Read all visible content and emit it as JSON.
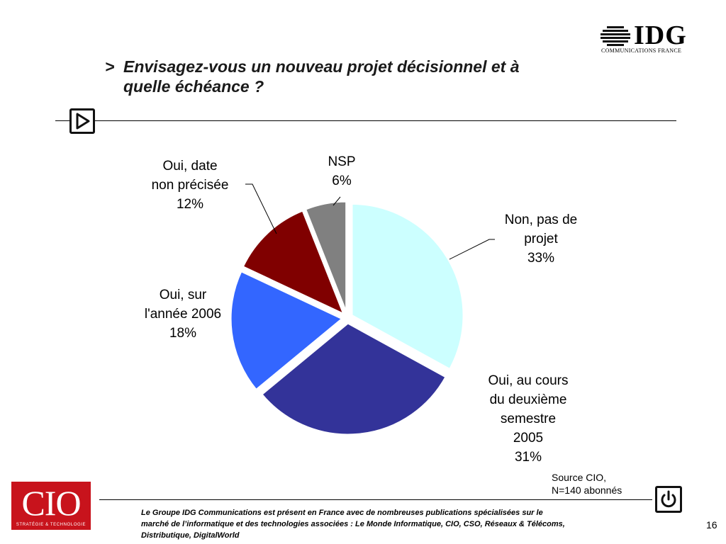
{
  "slide": {
    "title_line1": "Envisagez-vous un nouveau projet décisionnel et à",
    "title_line2": "quelle échéance ?",
    "title_prefix": ">",
    "source_line1": "Source CIO,",
    "source_line2": "N=140 abonnés",
    "footer_line1": "Le Groupe IDG Communications est présent en France avec de nombreuses publications spécialisées sur le",
    "footer_line2": " marché de l’informatique et des technologies associées : Le Monde Informatique, CIO, CSO, Réseaux & Télécoms,",
    "footer_line3": "Distributique, DigitalWorld",
    "page_number": "16"
  },
  "logos": {
    "idg_word": "IDG",
    "idg_subtitle": "COMMUNICATIONS FRANCE",
    "cio_word": "CIO",
    "cio_subtitle": "STRATÉGIE & TECHNOLOGIE"
  },
  "chart_data": {
    "type": "pie",
    "title": "",
    "slices": [
      {
        "label_lines": [
          "Non, pas de",
          "projet"
        ],
        "percent_label": "33%",
        "value": 33,
        "color": "#ccffff"
      },
      {
        "label_lines": [
          "Oui, au cours",
          "du deuxième",
          "semestre",
          "2005"
        ],
        "percent_label": "31%",
        "value": 31,
        "color": "#333399"
      },
      {
        "label_lines": [
          "Oui, sur",
          "l'année 2006"
        ],
        "percent_label": "18%",
        "value": 18,
        "color": "#3366ff"
      },
      {
        "label_lines": [
          "Oui, date",
          "non précisée"
        ],
        "percent_label": "12%",
        "value": 12,
        "color": "#800000"
      },
      {
        "label_lines": [
          "NSP"
        ],
        "percent_label": "6%",
        "value": 6,
        "color": "#808080"
      }
    ]
  }
}
